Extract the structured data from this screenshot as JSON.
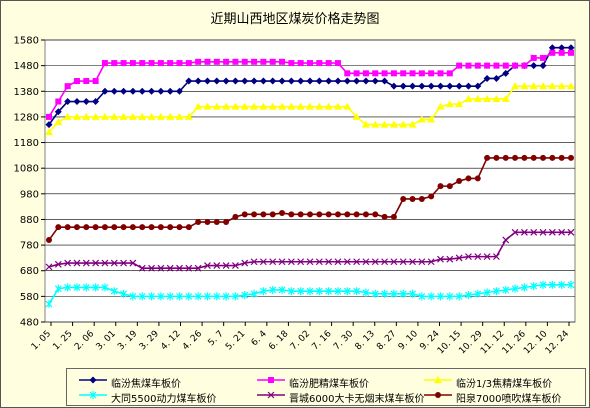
{
  "chart_data": {
    "type": "line",
    "title": "近期山西地区煤炭价格走势图",
    "xlabel": "",
    "ylabel": "",
    "ylim": [
      480,
      1580
    ],
    "yticks": [
      480,
      580,
      680,
      780,
      880,
      980,
      1080,
      1180,
      1280,
      1380,
      1480,
      1580
    ],
    "x_tick_labels": [
      "1. 05",
      "1. 25",
      "2. 06",
      "3. 01",
      "3. 19",
      "3. 29",
      "4. 12",
      "4. 26",
      "5. 7",
      "5. 21",
      "6. 4",
      "6. 18",
      "7. 02",
      "7. 16",
      "7. 30",
      "8. 13",
      "8. 27",
      "9. 10",
      "9. 24",
      "10. 15",
      "10. 29",
      "11. 12",
      "11. 26",
      "12. 10",
      "12. 24"
    ],
    "grid": "horizontal",
    "legend_position": "bottom",
    "series": [
      {
        "name": "临汾焦煤车板价",
        "color": "#000080",
        "marker": "diamond",
        "values": [
          1250,
          1300,
          1340,
          1340,
          1340,
          1340,
          1380,
          1380,
          1380,
          1380,
          1380,
          1380,
          1380,
          1380,
          1380,
          1420,
          1420,
          1420,
          1420,
          1420,
          1420,
          1420,
          1420,
          1420,
          1420,
          1420,
          1420,
          1420,
          1420,
          1420,
          1420,
          1420,
          1420,
          1420,
          1420,
          1420,
          1420,
          1400,
          1400,
          1400,
          1400,
          1400,
          1400,
          1400,
          1400,
          1400,
          1400,
          1430,
          1430,
          1450,
          1480,
          1480,
          1480,
          1480,
          1550,
          1550,
          1550
        ]
      },
      {
        "name": "临汾肥精煤车板价",
        "color": "#ff00ff",
        "marker": "square",
        "values": [
          1280,
          1340,
          1400,
          1420,
          1420,
          1420,
          1490,
          1490,
          1490,
          1490,
          1490,
          1490,
          1490,
          1490,
          1490,
          1490,
          1495,
          1495,
          1495,
          1495,
          1495,
          1495,
          1495,
          1495,
          1495,
          1495,
          1490,
          1490,
          1490,
          1490,
          1490,
          1490,
          1450,
          1450,
          1450,
          1450,
          1450,
          1450,
          1450,
          1450,
          1450,
          1450,
          1450,
          1450,
          1480,
          1480,
          1480,
          1480,
          1480,
          1480,
          1480,
          1480,
          1510,
          1510,
          1530,
          1530,
          1530
        ]
      },
      {
        "name": "临汾1/3焦精煤车板价",
        "color": "#ffff00",
        "marker": "triangle",
        "values": [
          1220,
          1260,
          1280,
          1280,
          1280,
          1280,
          1280,
          1280,
          1280,
          1280,
          1280,
          1280,
          1280,
          1280,
          1280,
          1280,
          1320,
          1320,
          1320,
          1320,
          1320,
          1320,
          1320,
          1320,
          1320,
          1320,
          1320,
          1320,
          1320,
          1320,
          1320,
          1320,
          1320,
          1280,
          1250,
          1250,
          1250,
          1250,
          1250,
          1250,
          1270,
          1270,
          1320,
          1330,
          1330,
          1350,
          1350,
          1350,
          1350,
          1350,
          1400,
          1400,
          1400,
          1400,
          1400,
          1400,
          1400
        ]
      },
      {
        "name": "大同5500动力煤车板价",
        "color": "#00ffff",
        "marker": "star",
        "values": [
          550,
          610,
          615,
          615,
          615,
          615,
          615,
          600,
          590,
          580,
          580,
          580,
          580,
          580,
          580,
          580,
          580,
          580,
          580,
          580,
          580,
          585,
          590,
          600,
          605,
          605,
          600,
          600,
          600,
          600,
          600,
          600,
          600,
          600,
          595,
          590,
          590,
          590,
          590,
          590,
          580,
          580,
          580,
          580,
          580,
          585,
          590,
          595,
          600,
          605,
          610,
          615,
          620,
          625,
          625,
          625,
          625
        ]
      },
      {
        "name": "晋城6000大卡无烟末煤车板价",
        "color": "#800080",
        "marker": "asterisk",
        "values": [
          695,
          705,
          710,
          710,
          710,
          710,
          710,
          710,
          710,
          710,
          690,
          690,
          690,
          690,
          690,
          690,
          690,
          700,
          700,
          700,
          700,
          710,
          715,
          715,
          715,
          715,
          715,
          715,
          715,
          715,
          715,
          715,
          715,
          715,
          715,
          715,
          715,
          715,
          715,
          715,
          715,
          715,
          725,
          725,
          730,
          735,
          735,
          735,
          735,
          800,
          830,
          830,
          830,
          830,
          830,
          830,
          830
        ]
      },
      {
        "name": "阳泉7000喷吹煤车板价",
        "color": "#800000",
        "marker": "circle",
        "values": [
          800,
          850,
          850,
          850,
          850,
          850,
          850,
          850,
          850,
          850,
          850,
          850,
          850,
          850,
          850,
          850,
          870,
          870,
          870,
          870,
          890,
          900,
          900,
          900,
          900,
          905,
          900,
          900,
          900,
          900,
          900,
          900,
          900,
          900,
          900,
          900,
          890,
          890,
          960,
          960,
          960,
          970,
          1010,
          1010,
          1030,
          1040,
          1040,
          1120,
          1120,
          1120,
          1120,
          1120,
          1120,
          1120,
          1120,
          1120,
          1120
        ]
      }
    ]
  }
}
